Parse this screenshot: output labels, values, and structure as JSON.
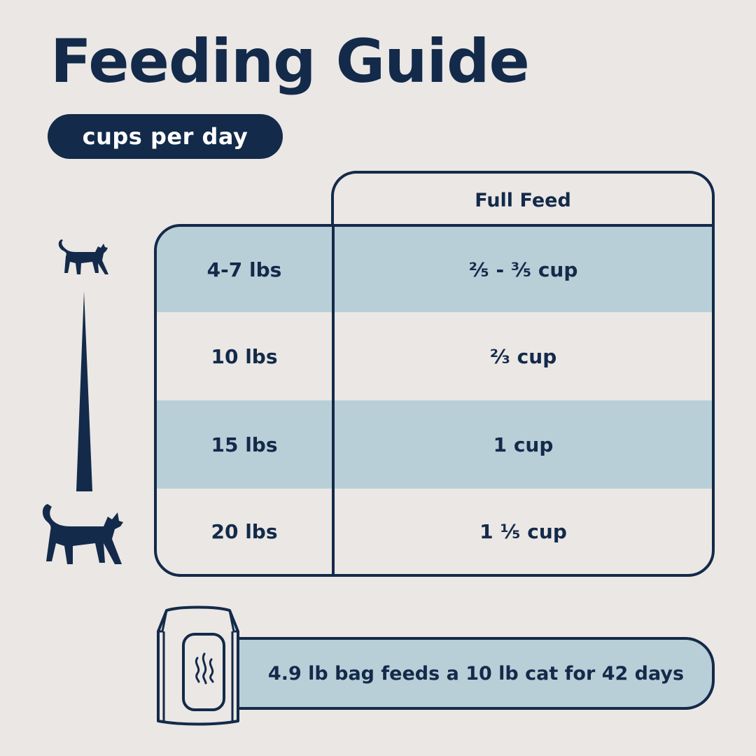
{
  "title": "Feeding Guide",
  "unit_pill": "cups per day",
  "table": {
    "header": "Full Feed",
    "rows": [
      {
        "weight": "4-7 lbs",
        "amount": "²⁄₅ - ³⁄₅ cup"
      },
      {
        "weight": "10 lbs",
        "amount": "²⁄₃ cup"
      },
      {
        "weight": "15 lbs",
        "amount": "1 cup"
      },
      {
        "weight": "20 lbs",
        "amount": "1 ¹⁄₅ cup"
      }
    ]
  },
  "footer": {
    "text": "4.9 lb bag feeds a 10 lb cat for 42 days"
  },
  "icons": {
    "small_cat": "small-cat-icon",
    "large_cat": "large-cat-icon",
    "scale_wedge": "size-scale-icon",
    "bag": "food-bag-icon"
  },
  "colors": {
    "navy": "#132a4a",
    "light_blue": "#b8cfd8",
    "background": "#ebe7e4"
  }
}
